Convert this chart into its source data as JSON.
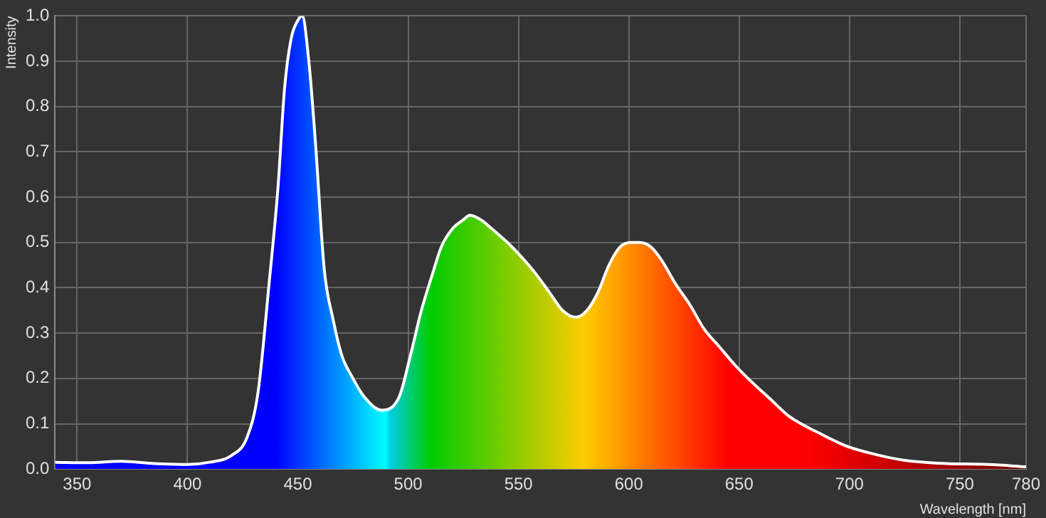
{
  "chart_data": {
    "type": "area",
    "xlabel": "Wavelength [nm]",
    "ylabel": "Intensity",
    "x": [
      340,
      355,
      370,
      385,
      400,
      410,
      420,
      427,
      432,
      437,
      441,
      444,
      447,
      450,
      452,
      455,
      458,
      462,
      466,
      470,
      475,
      480,
      488,
      496,
      501,
      506,
      511,
      515,
      520,
      525,
      528,
      533,
      538,
      545,
      551,
      558,
      564,
      570,
      576,
      581,
      586,
      591,
      596,
      601,
      605,
      610,
      615,
      621,
      628,
      634,
      641,
      648,
      654,
      664,
      673,
      686,
      699,
      712,
      724,
      740,
      763,
      780
    ],
    "series": [
      {
        "color": "#ffffff",
        "values": [
          0.015,
          0.014,
          0.017,
          0.012,
          0.01,
          0.015,
          0.03,
          0.07,
          0.17,
          0.41,
          0.62,
          0.84,
          0.95,
          0.99,
          1.0,
          0.9,
          0.72,
          0.44,
          0.33,
          0.25,
          0.2,
          0.16,
          0.13,
          0.16,
          0.25,
          0.35,
          0.43,
          0.49,
          0.53,
          0.55,
          0.56,
          0.55,
          0.53,
          0.5,
          0.47,
          0.43,
          0.39,
          0.35,
          0.335,
          0.35,
          0.39,
          0.45,
          0.49,
          0.5,
          0.5,
          0.49,
          0.46,
          0.41,
          0.36,
          0.31,
          0.27,
          0.23,
          0.2,
          0.155,
          0.115,
          0.08,
          0.05,
          0.032,
          0.02,
          0.013,
          0.01,
          0.005
        ]
      }
    ],
    "xlim": [
      340,
      780
    ],
    "xticks": [
      350,
      400,
      450,
      500,
      550,
      600,
      650,
      700,
      750,
      780
    ],
    "ylim": [
      0,
      1
    ],
    "yticks": [
      {
        "value": 0,
        "label": "0.0"
      },
      0.1,
      0.2,
      0.3,
      0.4,
      0.5,
      0.6,
      0.7,
      0.8,
      0.9,
      {
        "value": 1,
        "label": "1.0"
      }
    ],
    "grid": true,
    "legend": false
  }
}
